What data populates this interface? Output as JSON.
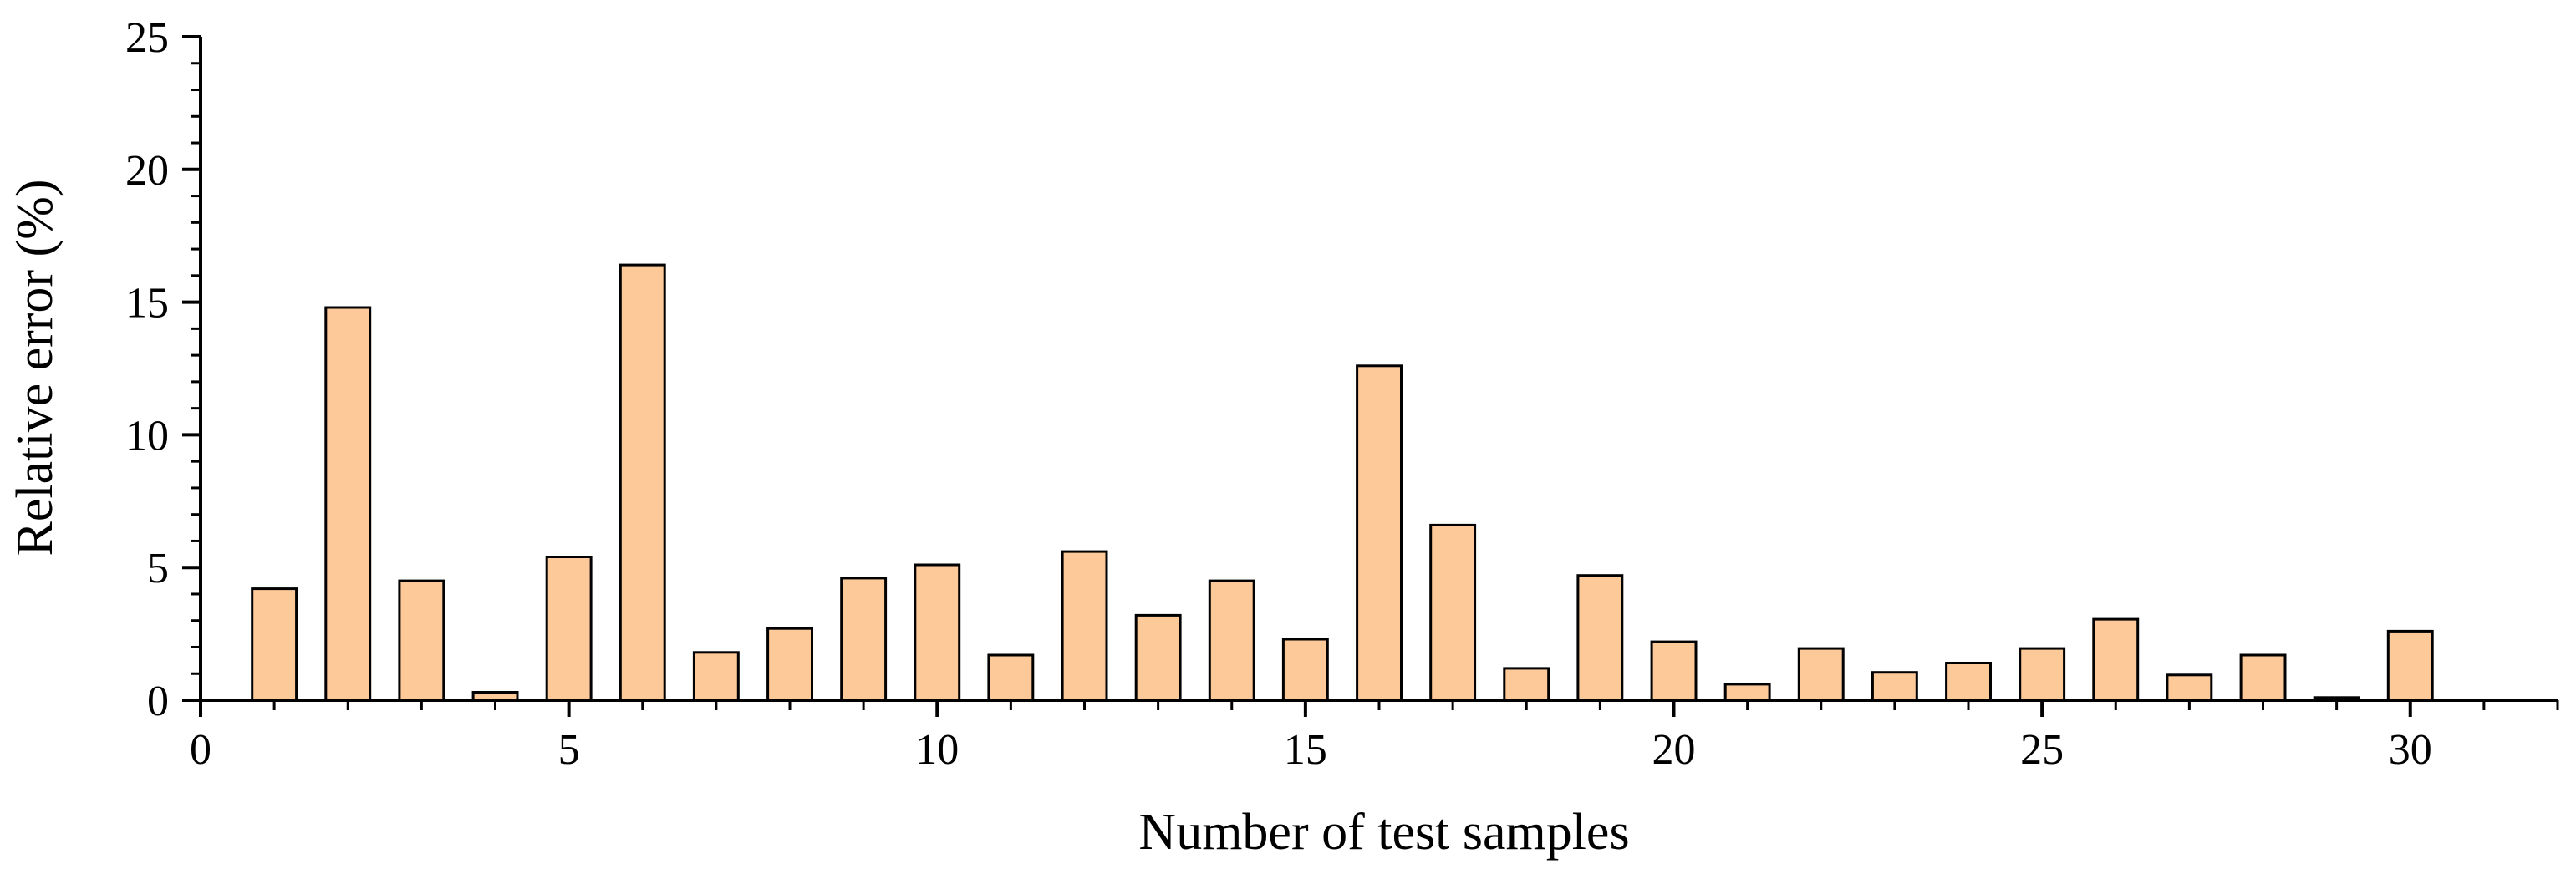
{
  "chart_data": {
    "type": "bar",
    "xlabel": "Number of test samples",
    "ylabel": "Relative error (%)",
    "xlim": [
      0,
      32
    ],
    "ylim": [
      0,
      25
    ],
    "x_ticks": [
      0,
      5,
      10,
      15,
      20,
      25,
      30
    ],
    "y_ticks": [
      0,
      5,
      10,
      15,
      20,
      25
    ],
    "x_minor_step": 1,
    "y_minor_step": 1,
    "grid": false,
    "bar_fill": "#fdc998",
    "bar_stroke": "#000000",
    "x": [
      1,
      2,
      3,
      4,
      5,
      6,
      7,
      8,
      9,
      10,
      11,
      12,
      13,
      14,
      15,
      16,
      17,
      18,
      19,
      20,
      21,
      22,
      23,
      24,
      25,
      26,
      27,
      28,
      29,
      30
    ],
    "values": [
      4.2,
      14.8,
      4.5,
      0.3,
      5.4,
      16.4,
      1.8,
      2.7,
      4.6,
      5.1,
      1.7,
      5.6,
      3.2,
      4.5,
      2.3,
      12.6,
      6.6,
      1.2,
      4.7,
      2.2,
      0.6,
      1.95,
      1.05,
      1.4,
      1.95,
      3.05,
      0.95,
      1.7,
      0.1,
      2.6
    ]
  }
}
